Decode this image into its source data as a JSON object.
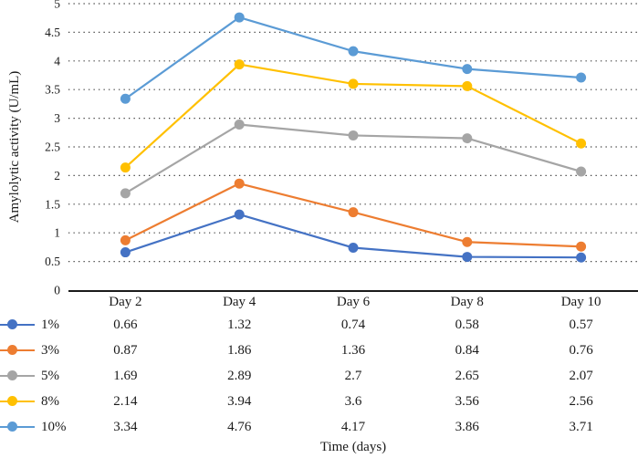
{
  "chart_data": {
    "type": "line",
    "title": "",
    "xlabel": "Time (days)",
    "ylabel": "Amylolytic activity (U/mL)",
    "categories": [
      "Day 2",
      "Day 4",
      "Day 6",
      "Day 8",
      "Day 10"
    ],
    "series": [
      {
        "name": "1%",
        "color": "#4472C4",
        "values": [
          0.66,
          1.32,
          0.74,
          0.58,
          0.57
        ]
      },
      {
        "name": "3%",
        "color": "#ED7D31",
        "values": [
          0.87,
          1.86,
          1.36,
          0.84,
          0.76
        ]
      },
      {
        "name": "5%",
        "color": "#A5A5A5",
        "values": [
          1.69,
          2.89,
          2.7,
          2.65,
          2.07
        ]
      },
      {
        "name": "8%",
        "color": "#FFC000",
        "values": [
          2.14,
          3.94,
          3.6,
          3.56,
          2.56
        ]
      },
      {
        "name": "10%",
        "color": "#5B9BD5",
        "values": [
          3.34,
          4.76,
          4.17,
          3.86,
          3.71
        ]
      }
    ],
    "ylim": [
      0,
      5
    ],
    "ytick_step": 0.5,
    "grid": "horizontal dotted",
    "legend_position": "left, beside data table rows",
    "marker": "filled circle",
    "axis_line_color": "#1a1a1a",
    "gridline_color": "#3d3d3d"
  }
}
